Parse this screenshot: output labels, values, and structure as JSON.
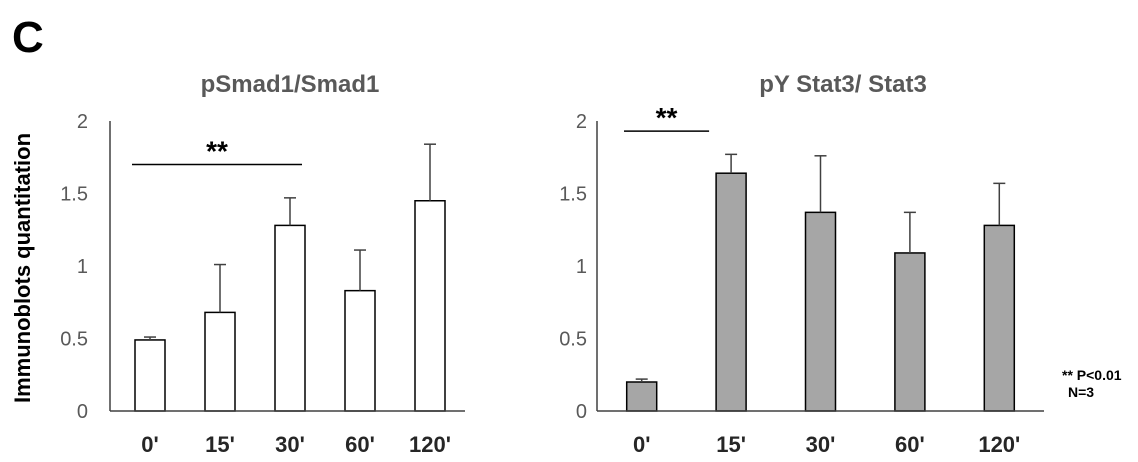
{
  "panel_label": "C",
  "y_axis_label": "Immunoblots quantitation",
  "footnote": {
    "line1": "** P<0.01",
    "line2": "N=3"
  },
  "chart_data": [
    {
      "type": "bar",
      "title": "pSmad1/Smad1",
      "categories": [
        "0'",
        "15'",
        "30'",
        "60'",
        "120'"
      ],
      "values": [
        0.49,
        0.68,
        1.28,
        0.83,
        1.45
      ],
      "errors": [
        0.02,
        0.33,
        0.19,
        0.28,
        0.39
      ],
      "ylim": [
        0,
        2
      ],
      "yticks": [
        0,
        0.5,
        1,
        1.5,
        2
      ],
      "ytick_labels": [
        "0",
        "0.5",
        "1",
        "1.5",
        "2"
      ],
      "bar_fill": "#ffffff",
      "significance": {
        "label": "**",
        "from": "0'",
        "to": "30'",
        "y": 1.7
      }
    },
    {
      "type": "bar",
      "title": "pY Stat3/ Stat3",
      "categories": [
        "0'",
        "15'",
        "30'",
        "60'",
        "120'"
      ],
      "values": [
        0.2,
        1.64,
        1.37,
        1.09,
        1.28
      ],
      "errors": [
        0.02,
        0.13,
        0.39,
        0.28,
        0.29
      ],
      "ylim": [
        0,
        2
      ],
      "yticks": [
        0,
        0.5,
        1,
        1.5,
        2
      ],
      "ytick_labels": [
        "0",
        "0.5",
        "1",
        "1.5",
        "2"
      ],
      "bar_fill": "#a6a6a6",
      "significance": {
        "label": "**",
        "from": "0'",
        "to": "15'",
        "y": 1.93
      }
    }
  ]
}
